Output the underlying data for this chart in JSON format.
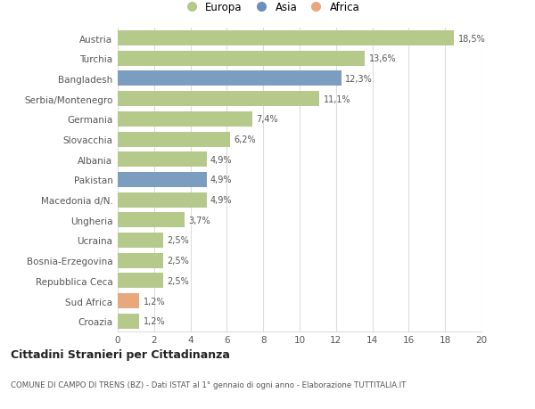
{
  "categories": [
    "Austria",
    "Turchia",
    "Bangladesh",
    "Serbia/Montenegro",
    "Germania",
    "Slovacchia",
    "Albania",
    "Pakistan",
    "Macedonia d/N.",
    "Ungheria",
    "Ucraina",
    "Bosnia-Erzegovina",
    "Repubblica Ceca",
    "Sud Africa",
    "Croazia"
  ],
  "values": [
    18.5,
    13.6,
    12.3,
    11.1,
    7.4,
    6.2,
    4.9,
    4.9,
    4.9,
    3.7,
    2.5,
    2.5,
    2.5,
    1.2,
    1.2
  ],
  "labels": [
    "18,5%",
    "13,6%",
    "12,3%",
    "11,1%",
    "7,4%",
    "6,2%",
    "4,9%",
    "4,9%",
    "4,9%",
    "3,7%",
    "2,5%",
    "2,5%",
    "2,5%",
    "1,2%",
    "1,2%"
  ],
  "continents": [
    "Europa",
    "Europa",
    "Asia",
    "Europa",
    "Europa",
    "Europa",
    "Europa",
    "Asia",
    "Europa",
    "Europa",
    "Europa",
    "Europa",
    "Europa",
    "Africa",
    "Europa"
  ],
  "colors": {
    "Europa": "#b5c98a",
    "Asia": "#7b9dbf",
    "Africa": "#e8a87c"
  },
  "legend_colors": {
    "Europa": "#b5c98a",
    "Asia": "#6b8fbf",
    "Africa": "#e8a87c"
  },
  "title": "Cittadini Stranieri per Cittadinanza",
  "subtitle": "COMUNE DI CAMPO DI TRENS (BZ) - Dati ISTAT al 1° gennaio di ogni anno - Elaborazione TUTTITALIA.IT",
  "xlim": [
    0,
    20
  ],
  "xticks": [
    0,
    2,
    4,
    6,
    8,
    10,
    12,
    14,
    16,
    18,
    20
  ],
  "background_color": "#ffffff",
  "grid_color": "#dddddd"
}
